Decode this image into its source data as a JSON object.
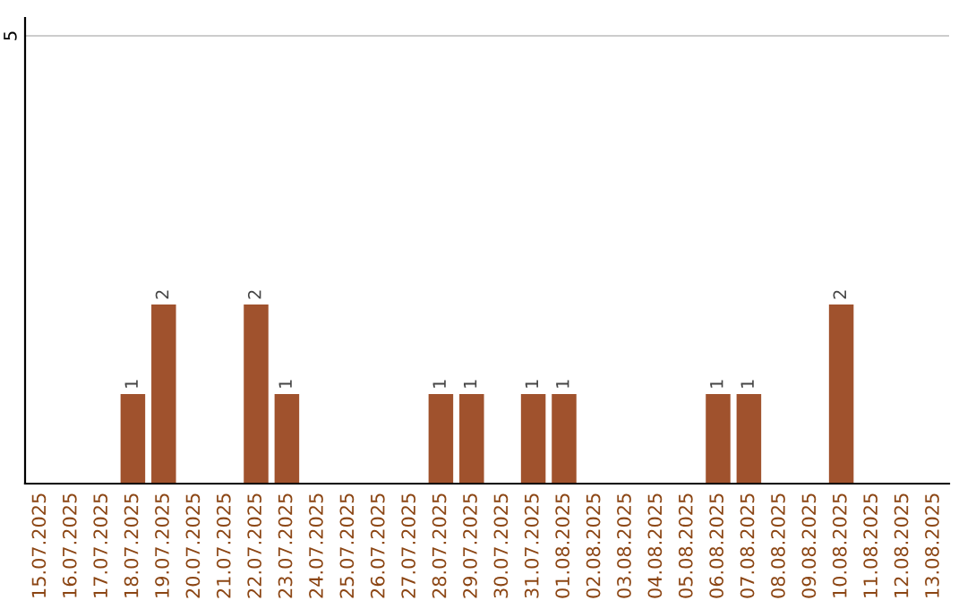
{
  "chart_data": {
    "type": "bar",
    "categories": [
      "15.07.2025",
      "16.07.2025",
      "17.07.2025",
      "18.07.2025",
      "19.07.2025",
      "20.07.2025",
      "21.07.2025",
      "22.07.2025",
      "23.07.2025",
      "24.07.2025",
      "25.07.2025",
      "26.07.2025",
      "27.07.2025",
      "28.07.2025",
      "29.07.2025",
      "30.07.2025",
      "31.07.2025",
      "01.08.2025",
      "02.08.2025",
      "03.08.2025",
      "04.08.2025",
      "05.08.2025",
      "06.08.2025",
      "07.08.2025",
      "08.08.2025",
      "09.08.2025",
      "10.08.2025",
      "11.08.2025",
      "12.08.2025",
      "13.08.2025"
    ],
    "values": [
      0,
      0,
      0,
      1,
      2,
      0,
      0,
      2,
      1,
      0,
      0,
      0,
      0,
      1,
      1,
      0,
      1,
      1,
      0,
      0,
      0,
      0,
      1,
      1,
      0,
      0,
      2,
      0,
      0,
      0
    ],
    "value_labels": [
      null,
      null,
      null,
      "1",
      "2",
      null,
      null,
      "2",
      "1",
      null,
      null,
      null,
      null,
      "1",
      "1",
      null,
      "1",
      "1",
      null,
      null,
      null,
      null,
      "1",
      "1",
      null,
      null,
      "2",
      null,
      null,
      null
    ],
    "color": "#a0522d",
    "ylim": [
      0,
      5.2
    ],
    "yticks": [
      5
    ],
    "grid": "y"
  }
}
